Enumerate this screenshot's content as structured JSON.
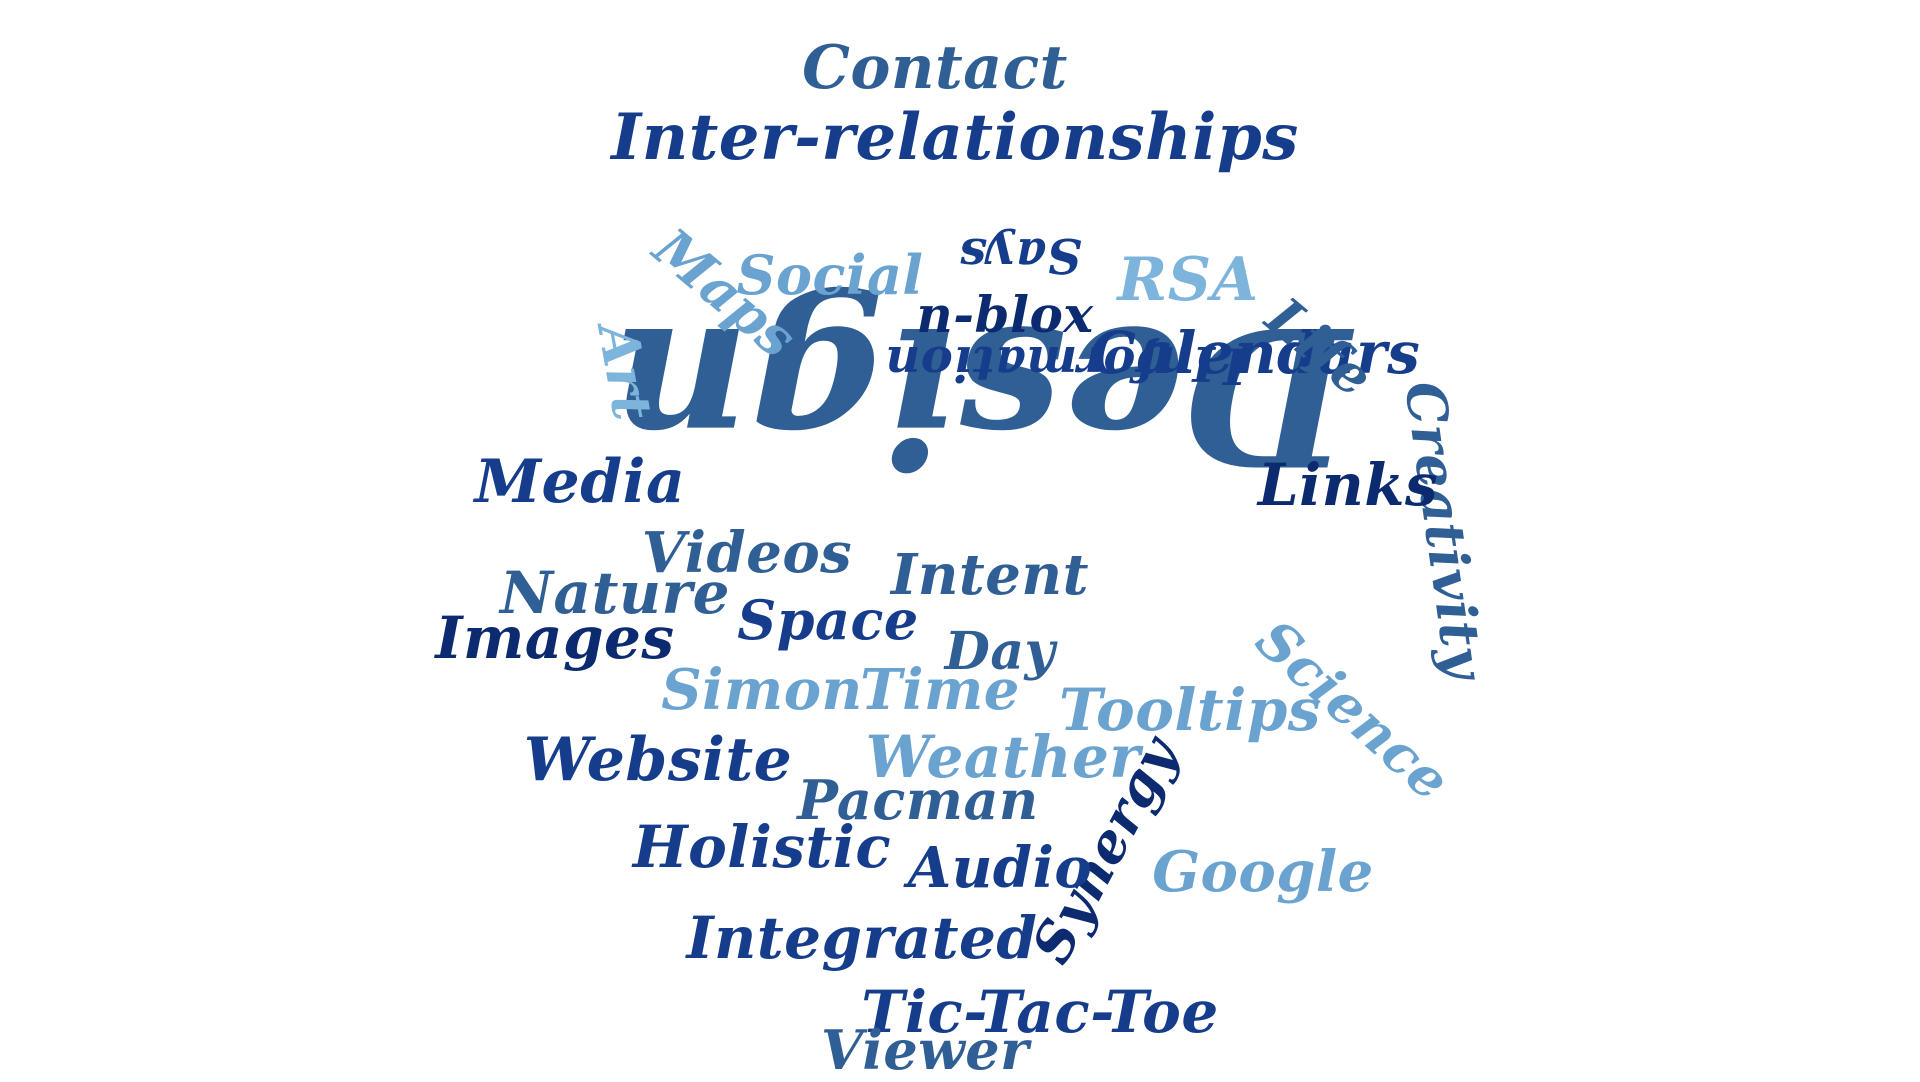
{
  "palette": {
    "navy": "#0b2a6f",
    "dark_blue": "#163d8c",
    "steel_blue": "#2f5f94",
    "sky_blue": "#6aa3d0",
    "light_blue": "#7db4dc"
  },
  "words": [
    {
      "text": "Design",
      "color": "#2f5f94",
      "weight": 1.0,
      "orientation": "upside-down"
    },
    {
      "text": "Inter-relationships",
      "color": "#163d8c",
      "weight": 0.45,
      "orientation": "horizontal"
    },
    {
      "text": "Contact",
      "color": "#2f5f94",
      "weight": 0.4,
      "orientation": "horizontal"
    },
    {
      "text": "Calendars",
      "color": "#163d8c",
      "weight": 0.45,
      "orientation": "horizontal"
    },
    {
      "text": "Creativity",
      "color": "#2f5f94",
      "weight": 0.4,
      "orientation": "vertical"
    },
    {
      "text": "Links",
      "color": "#0b2a6f",
      "weight": 0.4,
      "orientation": "horizontal"
    },
    {
      "text": "Science",
      "color": "#6aa3d0",
      "weight": 0.4,
      "orientation": "diagonal"
    },
    {
      "text": "Media",
      "color": "#163d8c",
      "weight": 0.4,
      "orientation": "horizontal"
    },
    {
      "text": "Videos",
      "color": "#2f5f94",
      "weight": 0.38,
      "orientation": "horizontal"
    },
    {
      "text": "Nature",
      "color": "#2f5f94",
      "weight": 0.38,
      "orientation": "horizontal"
    },
    {
      "text": "Images",
      "color": "#0b2a6f",
      "weight": 0.38,
      "orientation": "horizontal"
    },
    {
      "text": "Space",
      "color": "#163d8c",
      "weight": 0.38,
      "orientation": "horizontal"
    },
    {
      "text": "Intent",
      "color": "#2f5f94",
      "weight": 0.38,
      "orientation": "horizontal"
    },
    {
      "text": "Day",
      "color": "#2f5f94",
      "weight": 0.38,
      "orientation": "horizontal"
    },
    {
      "text": "Simon",
      "color": "#6aa3d0",
      "weight": 0.38,
      "orientation": "horizontal"
    },
    {
      "text": "Time",
      "color": "#6aa3d0",
      "weight": 0.38,
      "orientation": "horizontal"
    },
    {
      "text": "Tooltips",
      "color": "#6aa3d0",
      "weight": 0.38,
      "orientation": "horizontal"
    },
    {
      "text": "Website",
      "color": "#163d8c",
      "weight": 0.4,
      "orientation": "horizontal"
    },
    {
      "text": "Weather",
      "color": "#6aa3d0",
      "weight": 0.4,
      "orientation": "horizontal"
    },
    {
      "text": "Pacman",
      "color": "#2f5f94",
      "weight": 0.36,
      "orientation": "horizontal"
    },
    {
      "text": "Synergy",
      "color": "#0b2a6f",
      "weight": 0.38,
      "orientation": "diagonal-up"
    },
    {
      "text": "Holistic",
      "color": "#163d8c",
      "weight": 0.4,
      "orientation": "horizontal"
    },
    {
      "text": "Audio",
      "color": "#163d8c",
      "weight": 0.38,
      "orientation": "horizontal"
    },
    {
      "text": "Google",
      "color": "#6aa3d0",
      "weight": 0.38,
      "orientation": "horizontal"
    },
    {
      "text": "Integrated",
      "color": "#163d8c",
      "weight": 0.4,
      "orientation": "horizontal"
    },
    {
      "text": "Tic-Tac-Toe",
      "color": "#163d8c",
      "weight": 0.4,
      "orientation": "horizontal"
    },
    {
      "text": "Viewer",
      "color": "#2f5f94",
      "weight": 0.36,
      "orientation": "horizontal"
    },
    {
      "text": "Social",
      "color": "#6aa3d0",
      "weight": 0.36,
      "orientation": "horizontal"
    },
    {
      "text": "Says",
      "color": "#163d8c",
      "weight": 0.3,
      "orientation": "upside-down"
    },
    {
      "text": "RSA",
      "color": "#7db4dc",
      "weight": 0.38,
      "orientation": "horizontal"
    },
    {
      "text": "Maps",
      "color": "#6aa3d0",
      "weight": 0.36,
      "orientation": "diagonal"
    },
    {
      "text": "n-blox",
      "color": "#0b2a6f",
      "weight": 0.34,
      "orientation": "horizontal"
    },
    {
      "text": "Information",
      "color": "#163d8c",
      "weight": 0.34,
      "orientation": "upside-down"
    },
    {
      "text": "I",
      "color": "#163d8c",
      "weight": 0.3,
      "orientation": "horizontal"
    },
    {
      "text": "Life",
      "color": "#2f5f94",
      "weight": 0.34,
      "orientation": "diagonal"
    },
    {
      "text": "Art",
      "color": "#7db4dc",
      "weight": 0.34,
      "orientation": "vertical"
    }
  ]
}
